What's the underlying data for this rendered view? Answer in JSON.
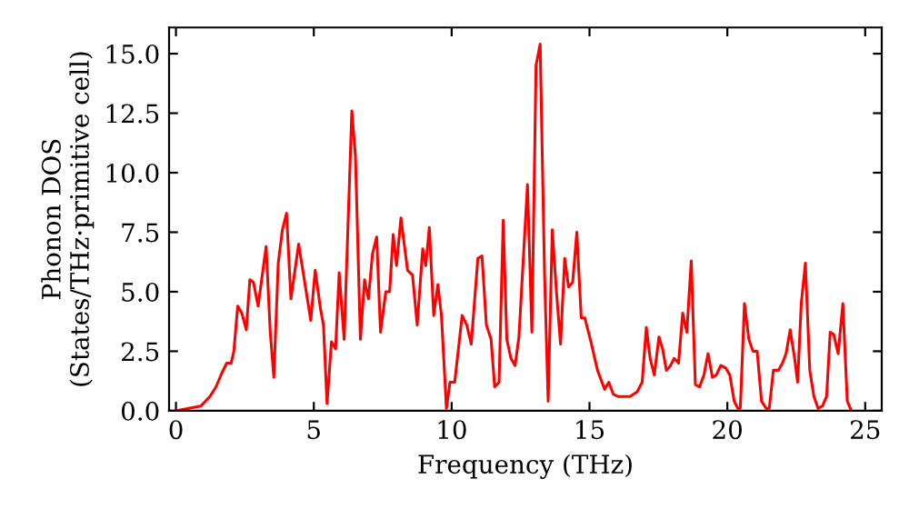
{
  "chart_data": {
    "type": "line",
    "xlabel": "Frequency (THz)",
    "ylabel": "Phonon DOS\n(States/THz·primitive cell)",
    "x": [
      0,
      0.46,
      0.9,
      1.23,
      1.45,
      1.67,
      1.84,
      2.0,
      2.1,
      2.24,
      2.39,
      2.55,
      2.68,
      2.81,
      2.98,
      3.27,
      3.42,
      3.55,
      3.71,
      3.86,
      4.01,
      4.17,
      4.45,
      4.89,
      5.05,
      5.24,
      5.35,
      5.48,
      5.64,
      5.79,
      5.92,
      6.1,
      6.38,
      6.51,
      6.69,
      6.84,
      6.98,
      7.13,
      7.28,
      7.42,
      7.61,
      7.75,
      7.88,
      8.0,
      8.16,
      8.4,
      8.58,
      8.75,
      8.95,
      9.06,
      9.19,
      9.35,
      9.5,
      9.63,
      9.81,
      9.94,
      10.11,
      10.38,
      10.55,
      10.71,
      10.95,
      11.1,
      11.26,
      11.43,
      11.56,
      11.72,
      11.87,
      12.0,
      12.15,
      12.3,
      12.44,
      12.75,
      12.91,
      13.06,
      13.21,
      13.37,
      13.5,
      13.65,
      13.8,
      13.95,
      14.1,
      14.24,
      14.39,
      14.54,
      14.7,
      14.83,
      15.05,
      15.29,
      15.55,
      15.7,
      15.86,
      16.03,
      16.47,
      16.73,
      16.91,
      17.06,
      17.2,
      17.35,
      17.52,
      17.65,
      17.79,
      17.94,
      18.07,
      18.23,
      18.38,
      18.53,
      18.69,
      18.84,
      18.99,
      19.15,
      19.3,
      19.46,
      19.6,
      19.76,
      19.94,
      20.09,
      20.25,
      20.38,
      20.47,
      20.62,
      20.78,
      20.93,
      21.08,
      21.24,
      21.41,
      21.52,
      21.67,
      21.85,
      22.0,
      22.13,
      22.28,
      22.44,
      22.55,
      22.68,
      22.83,
      22.99,
      23.14,
      23.29,
      23.45,
      23.6,
      23.73,
      23.86,
      24.02,
      24.19,
      24.35,
      24.5
    ],
    "series": [
      {
        "color": "#ff0000",
        "values": [
          0,
          0.1,
          0.2,
          0.6,
          1.0,
          1.6,
          2.0,
          2.0,
          2.5,
          4.4,
          4.1,
          3.4,
          5.5,
          5.4,
          4.4,
          6.9,
          3.3,
          1.4,
          6.2,
          7.6,
          8.3,
          4.7,
          7.0,
          3.8,
          5.9,
          4.3,
          3.6,
          0.3,
          2.9,
          2.6,
          5.8,
          3.0,
          12.6,
          10.7,
          3.0,
          5.5,
          4.7,
          6.6,
          7.3,
          3.3,
          5.0,
          5.0,
          7.4,
          6.1,
          8.1,
          5.9,
          5.7,
          3.6,
          6.8,
          6.1,
          7.7,
          4.0,
          5.3,
          4.0,
          0.1,
          1.2,
          1.2,
          4.0,
          3.6,
          2.8,
          6.4,
          6.5,
          3.6,
          3.0,
          1.0,
          1.2,
          8.0,
          3.0,
          2.2,
          1.9,
          3.1,
          9.5,
          3.3,
          14.5,
          15.4,
          5.7,
          0.4,
          7.6,
          5.0,
          2.8,
          6.4,
          5.2,
          5.4,
          7.5,
          3.9,
          3.9,
          2.9,
          1.7,
          0.9,
          1.2,
          0.7,
          0.6,
          0.6,
          0.8,
          1.2,
          3.5,
          2.2,
          1.5,
          3.1,
          2.6,
          1.7,
          1.9,
          2.2,
          2.0,
          4.1,
          3.3,
          6.3,
          1.1,
          1.0,
          1.5,
          2.4,
          1.4,
          1.5,
          1.9,
          1.8,
          1.5,
          0.4,
          0.1,
          0.1,
          4.5,
          3.0,
          2.5,
          2.5,
          0.4,
          0.1,
          0.1,
          1.7,
          1.7,
          2.0,
          2.4,
          3.4,
          2.2,
          1.2,
          4.5,
          6.2,
          1.7,
          0.6,
          0.1,
          0.2,
          0.6,
          3.3,
          3.2,
          2.4,
          4.5,
          0.4,
          0
        ]
      }
    ],
    "xlim": [
      -0.25,
      25.6
    ],
    "ylim": [
      0,
      16.1
    ],
    "xticks": [
      0,
      5,
      10,
      15,
      20,
      25
    ],
    "yticks": [
      {
        "value": 0,
        "label": "0.0"
      },
      {
        "value": 2.5,
        "label": "2.5"
      },
      {
        "value": 5,
        "label": "5.0"
      },
      {
        "value": 7.5,
        "label": "7.5"
      },
      {
        "value": 10,
        "label": "10.0"
      },
      {
        "value": 12.5,
        "label": "12.5"
      },
      {
        "value": 15,
        "label": "15.0"
      }
    ],
    "grid": false,
    "line_style": "solid"
  }
}
